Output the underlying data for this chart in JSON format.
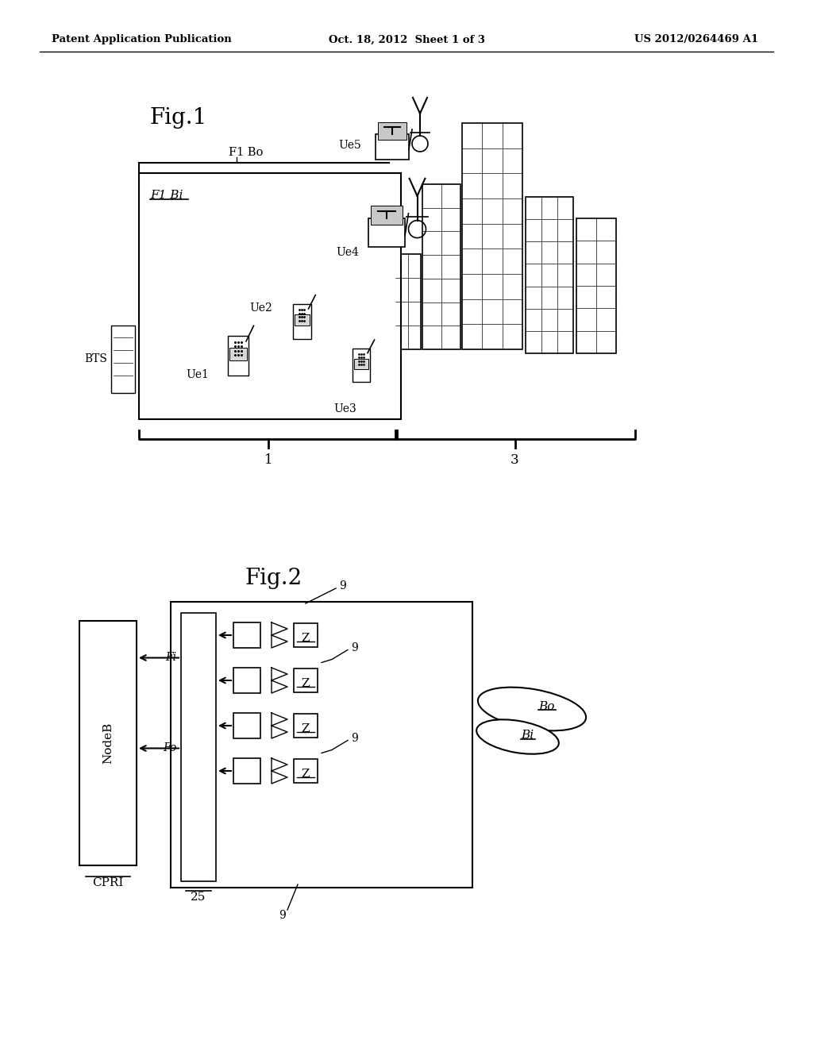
{
  "bg": "#ffffff",
  "lc": "#000000",
  "header_left": "Patent Application Publication",
  "header_mid": "Oct. 18, 2012  Sheet 1 of 3",
  "header_right": "US 2012/0264469 A1",
  "fig1_title": "Fig.1",
  "fig2_title": "Fig.2",
  "f1bi": "F1 Bi",
  "f1bo": "F1 Bo",
  "bts": "BTS",
  "ue1": "Ue1",
  "ue2": "Ue2",
  "ue3": "Ue3",
  "ue4": "Ue4",
  "ue5": "Ue5",
  "bracket1": "1",
  "bracket3": "3",
  "nodeb": "NodeB",
  "cpri": "CPRI",
  "num25": "25",
  "fi": "Fi",
  "fo": "Fo",
  "bo": "Bo",
  "bi": "Bi",
  "nine": "9",
  "z_label": "Z"
}
